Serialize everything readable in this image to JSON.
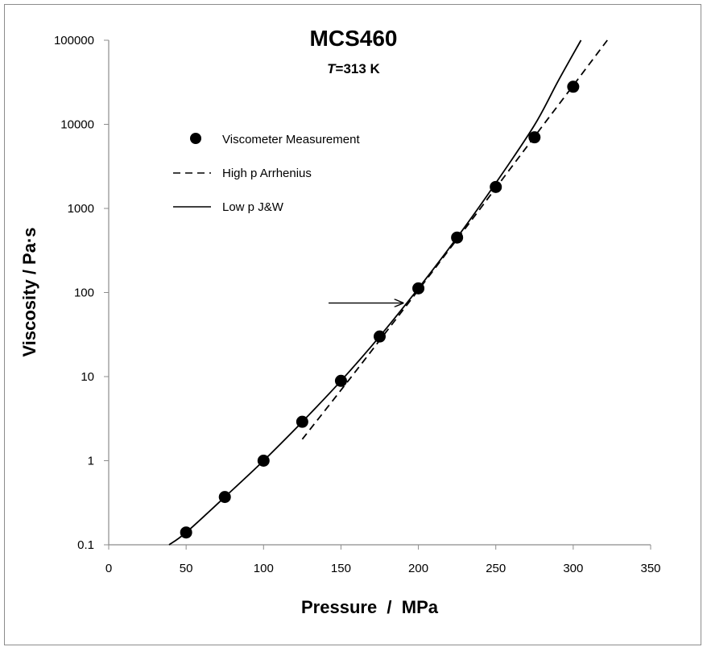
{
  "chart_data": {
    "type": "scatter",
    "title": "MCS460",
    "subtitle_italic": "T",
    "subtitle_rest": "=313 K",
    "xlabel": "Pressure  /  MPa",
    "ylabel": "Viscosity / Pa·s",
    "x_scale": "linear",
    "y_scale": "log",
    "xlim": [
      0,
      350
    ],
    "ylim": [
      0.1,
      100000
    ],
    "x_ticks": [
      0,
      50,
      100,
      150,
      200,
      250,
      300,
      350
    ],
    "x_tick_labels": [
      "0",
      "50",
      "100",
      "150",
      "200",
      "250",
      "300",
      "350"
    ],
    "y_ticks": [
      0.1,
      1,
      10,
      100,
      1000,
      10000,
      100000
    ],
    "y_tick_labels": [
      "0.1",
      "1",
      "10",
      "100",
      "1000",
      "10000",
      "100000"
    ],
    "grid": false,
    "legend_position": "top-left",
    "series": [
      {
        "name": "Viscometer Measurement",
        "kind": "points",
        "color": "#000000",
        "x": [
          50,
          75,
          100,
          125,
          150,
          175,
          200,
          225,
          250,
          275,
          300
        ],
        "y": [
          0.14,
          0.37,
          1.0,
          2.9,
          8.9,
          30,
          112,
          450,
          1800,
          7000,
          28000
        ]
      },
      {
        "name": "High p Arrhenius",
        "kind": "dashed-line",
        "color": "#000000",
        "x": [
          125,
          150,
          175,
          200,
          225,
          250,
          275,
          300,
          322
        ],
        "y": [
          1.8,
          6.9,
          27,
          107,
          430,
          1750,
          7150,
          29000,
          100000
        ]
      },
      {
        "name": "Low p J&W",
        "kind": "solid-line",
        "color": "#000000",
        "x": [
          39,
          50,
          75,
          100,
          125,
          150,
          175,
          200,
          225,
          250,
          275,
          290,
          305
        ],
        "y": [
          0.1,
          0.14,
          0.37,
          1.0,
          2.9,
          8.9,
          30,
          112,
          450,
          2000,
          9800,
          32000,
          100000
        ]
      }
    ],
    "annotations": [
      {
        "type": "arrow",
        "from": [
          142,
          75
        ],
        "to": [
          190,
          75
        ]
      }
    ]
  }
}
